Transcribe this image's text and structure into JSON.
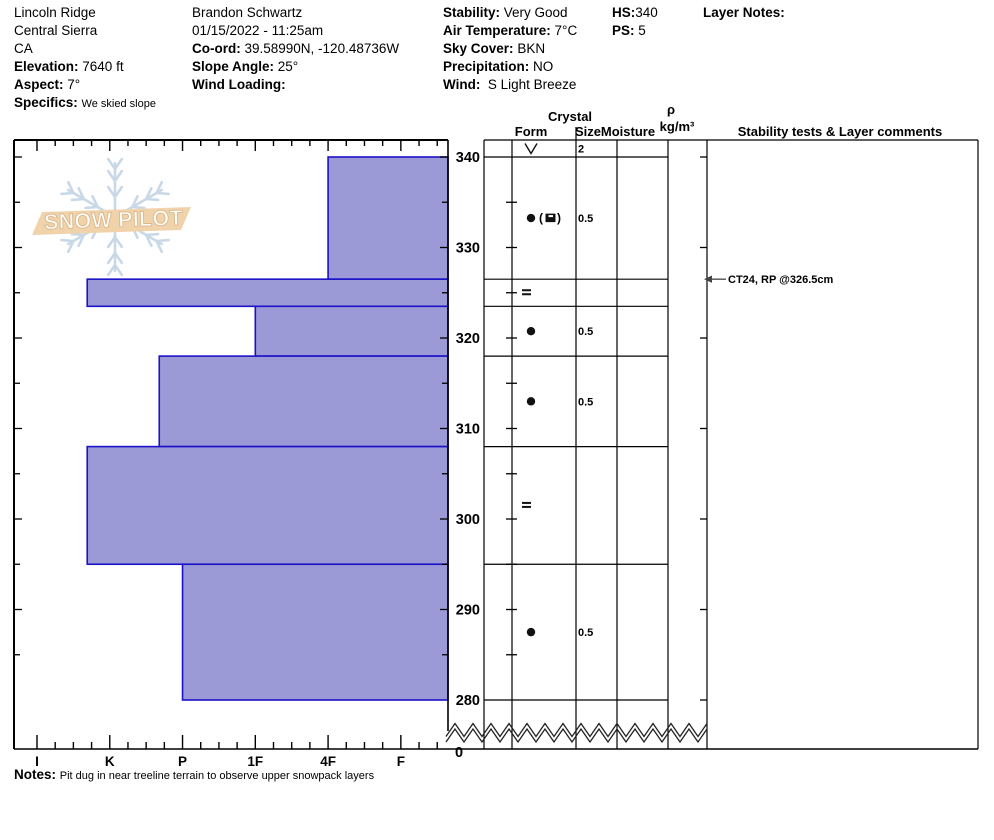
{
  "header": {
    "location": {
      "name": "Lincoln Ridge",
      "region": "Central Sierra",
      "state": "CA",
      "elevation_label": "Elevation:",
      "elevation_value": "7640 ft",
      "aspect_label": "Aspect:",
      "aspect_value": "7°",
      "specifics_label": "Specifics:",
      "specifics_value": "We skied slope"
    },
    "observer": {
      "name": "Brandon Schwartz",
      "datetime": "01/15/2022 - 11:25am",
      "coord_label": "Co-ord:",
      "coord_value": "39.58990N, -120.48736W",
      "slope_angle_label": "Slope Angle:",
      "slope_angle_value": "25°",
      "wind_loading_label": "Wind Loading:",
      "wind_loading_value": ""
    },
    "conditions": {
      "stability_label": "Stability:",
      "stability_value": "Very Good",
      "air_temp_label": "Air Temperature:",
      "air_temp_value": "7°C",
      "sky_label": "Sky Cover:",
      "sky_value": "BKN",
      "precip_label": "Precipitation:",
      "precip_value": "NO",
      "wind_label": "Wind:",
      "wind_value": "S Light Breeze"
    },
    "hs_label": "HS:",
    "hs_value": "340",
    "ps_label": "PS:",
    "ps_value": "5",
    "layer_notes_label": "Layer Notes:"
  },
  "logo": {
    "text": "SNOW PILOT"
  },
  "table": {
    "crystal_header": "Crystal",
    "columns": {
      "form": "Form",
      "size": "Size",
      "moisture": "Moisture",
      "density_symbol": "ρ",
      "density_unit": "kg/m³",
      "stability": "Stability tests & Layer comments"
    }
  },
  "chart_data": {
    "type": "bar",
    "orientation": "horizontal-hardness-profile",
    "title": "Snow pit profile: hand hardness vs height of snowpack",
    "depth_unit": "cm",
    "depth_surface": 340,
    "depth_profile_bottom": 280,
    "depth_ticks": [
      340,
      330,
      320,
      310,
      300,
      290,
      280
    ],
    "depth_break_label": "0",
    "hardness_categories": [
      "I",
      "K",
      "P",
      "1F",
      "4F",
      "F"
    ],
    "hardness_note": "I=ice (hardest, left) to F=fist (softest, right); bar extends left = harder layer",
    "layers": [
      {
        "top_cm": 340,
        "bottom_cm": 326.5,
        "hardness": "4F",
        "hardness_pos": 4.0
      },
      {
        "top_cm": 326.5,
        "bottom_cm": 323.5,
        "hardness": "K+",
        "hardness_pos": 0.69
      },
      {
        "top_cm": 323.5,
        "bottom_cm": 318,
        "hardness": "1F",
        "hardness_pos": 3.0
      },
      {
        "top_cm": 318,
        "bottom_cm": 308,
        "hardness": "P+",
        "hardness_pos": 1.68
      },
      {
        "top_cm": 308,
        "bottom_cm": 295,
        "hardness": "K+",
        "hardness_pos": 0.69
      },
      {
        "top_cm": 295,
        "bottom_cm": 280,
        "hardness": "P",
        "hardness_pos": 2.0
      }
    ],
    "grain_rows": [
      {
        "bottom_cm": 340,
        "form": [
          "vee"
        ],
        "form_name": "surface-hoar",
        "size": "2",
        "moisture": "",
        "density": ""
      },
      {
        "bottom_cm": 326.5,
        "form": [
          "dot",
          "paren_open",
          "cup",
          "paren_close"
        ],
        "form_name": "rounded-grains (mixed)",
        "size": "0.5",
        "moisture": "",
        "density": ""
      },
      {
        "bottom_cm": 323.5,
        "form": [
          "ice"
        ],
        "form_name": "ice-layer",
        "size": "",
        "moisture": "",
        "density": ""
      },
      {
        "bottom_cm": 318,
        "form": [
          "dot"
        ],
        "form_name": "rounded-grains",
        "size": "0.5",
        "moisture": "",
        "density": ""
      },
      {
        "bottom_cm": 308,
        "form": [
          "dot"
        ],
        "form_name": "rounded-grains",
        "size": "0.5",
        "moisture": "",
        "density": ""
      },
      {
        "bottom_cm": 295,
        "form": [
          "ice"
        ],
        "form_name": "ice-layer",
        "size": "",
        "moisture": "",
        "density": ""
      },
      {
        "bottom_cm": 280,
        "form": [
          "dot"
        ],
        "form_name": "rounded-grains",
        "size": "0.5",
        "moisture": "",
        "density": ""
      }
    ],
    "stability_tests": [
      {
        "depth_cm": 326.5,
        "text": "CT24, RP @326.5cm"
      }
    ]
  },
  "notes": {
    "label": "Notes:",
    "value": "Pit dug in near treeline terrain to observe upper snowpack layers"
  },
  "colors": {
    "bar_fill": "#9b99d6",
    "bar_border": "#1c12c8",
    "logo_band": "#f1d3ab",
    "logo_text_stroke": "#d9b78d",
    "snowflake": "#c9d8e7"
  }
}
